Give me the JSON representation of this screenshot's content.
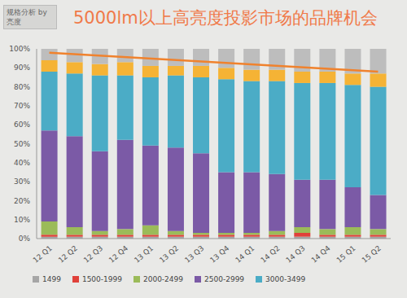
{
  "chart_data": {
    "type": "bar",
    "stacked": true,
    "title": "5000lm以上高亮度投影市场的品牌机会",
    "subtitle": "规格分析 by亮度",
    "categories": [
      "12 Q1",
      "12 Q2",
      "12 Q3",
      "12 Q4",
      "13 Q1",
      "13 Q2",
      "13 Q3",
      "13 Q4",
      "14 Q1",
      "14 Q2",
      "14 Q3",
      "14 Q4",
      "15 Q1",
      "15 Q2"
    ],
    "ylim": [
      0,
      100
    ],
    "yticks": [
      {
        "value": 0,
        "label": "0%"
      },
      {
        "value": 10,
        "label": "10%"
      },
      {
        "value": 20,
        "label": "20%"
      },
      {
        "value": 30,
        "label": "30%"
      },
      {
        "value": 40,
        "label": "40%"
      },
      {
        "value": 50,
        "label": "50%"
      },
      {
        "value": 60,
        "label": "60%"
      },
      {
        "value": 70,
        "label": "70%"
      },
      {
        "value": 80,
        "label": "80%"
      },
      {
        "value": 90,
        "label": "90%"
      },
      {
        "value": 100,
        "label": "100%"
      }
    ],
    "grid": false,
    "legend": "bottom",
    "series": [
      {
        "name": "1499",
        "color": "#a6a6a6",
        "values": [
          1,
          1,
          1,
          1,
          1,
          1,
          1,
          1,
          1,
          1,
          1,
          1,
          1,
          1
        ]
      },
      {
        "name": "1500-1999",
        "color": "#e0413a",
        "values": [
          1,
          1,
          1,
          1,
          1,
          1,
          1,
          1,
          1,
          1,
          2,
          1,
          1,
          1
        ]
      },
      {
        "name": "2000-2499",
        "color": "#9bbb59",
        "values": [
          7,
          4,
          2,
          3,
          5,
          2,
          1,
          1,
          1,
          2,
          3,
          3,
          4,
          3
        ]
      },
      {
        "name": "2500-2999",
        "color": "#7b5aa6",
        "values": [
          48,
          48,
          42,
          47,
          42,
          44,
          42,
          32,
          32,
          30,
          25,
          26,
          21,
          18
        ]
      },
      {
        "name": "3000-3499",
        "color": "#4bacc6",
        "values": [
          31,
          33,
          40,
          34,
          36,
          38,
          40,
          49,
          48,
          49,
          51,
          51,
          54,
          57
        ]
      },
      {
        "name": null,
        "color": "#f5b335",
        "values": [
          6,
          6,
          6,
          7,
          6,
          5,
          6,
          6,
          6,
          6,
          6,
          6,
          6,
          7
        ]
      },
      {
        "name": null,
        "color": "#bdbdbd",
        "values": [
          6,
          7,
          8,
          7,
          9,
          9,
          9,
          10,
          11,
          11,
          12,
          12,
          13,
          13
        ]
      }
    ],
    "trend_line": {
      "values": [
        98,
        88
      ],
      "color": "#f0822d"
    }
  }
}
